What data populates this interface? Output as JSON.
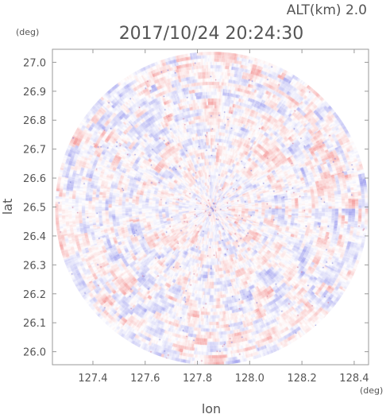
{
  "chart_data": {
    "type": "heatmap",
    "title": "2017/10/24 20:24:30",
    "altitude_label": "ALT(km) 2.0",
    "xlabel": "lon",
    "ylabel": "lat",
    "x_unit": "(deg)",
    "y_unit": "(deg)",
    "xlim": [
      127.245,
      128.455
    ],
    "ylim": [
      25.955,
      27.045
    ],
    "x_ticks": [
      "127.4",
      "127.6",
      "127.8",
      "128.0",
      "128.2",
      "128.4"
    ],
    "y_ticks": [
      "26.0",
      "26.1",
      "26.2",
      "26.3",
      "26.4",
      "26.5",
      "26.6",
      "26.7",
      "26.8",
      "26.9",
      "27.0"
    ],
    "radar_center": {
      "lon": 127.855,
      "lat": 26.495
    },
    "radar_range_deg_lon": 0.6,
    "grid": false,
    "colors": {
      "positive": "#f5a0a0",
      "negative": "#a8a8f0",
      "neutral": "#ffffff"
    }
  }
}
